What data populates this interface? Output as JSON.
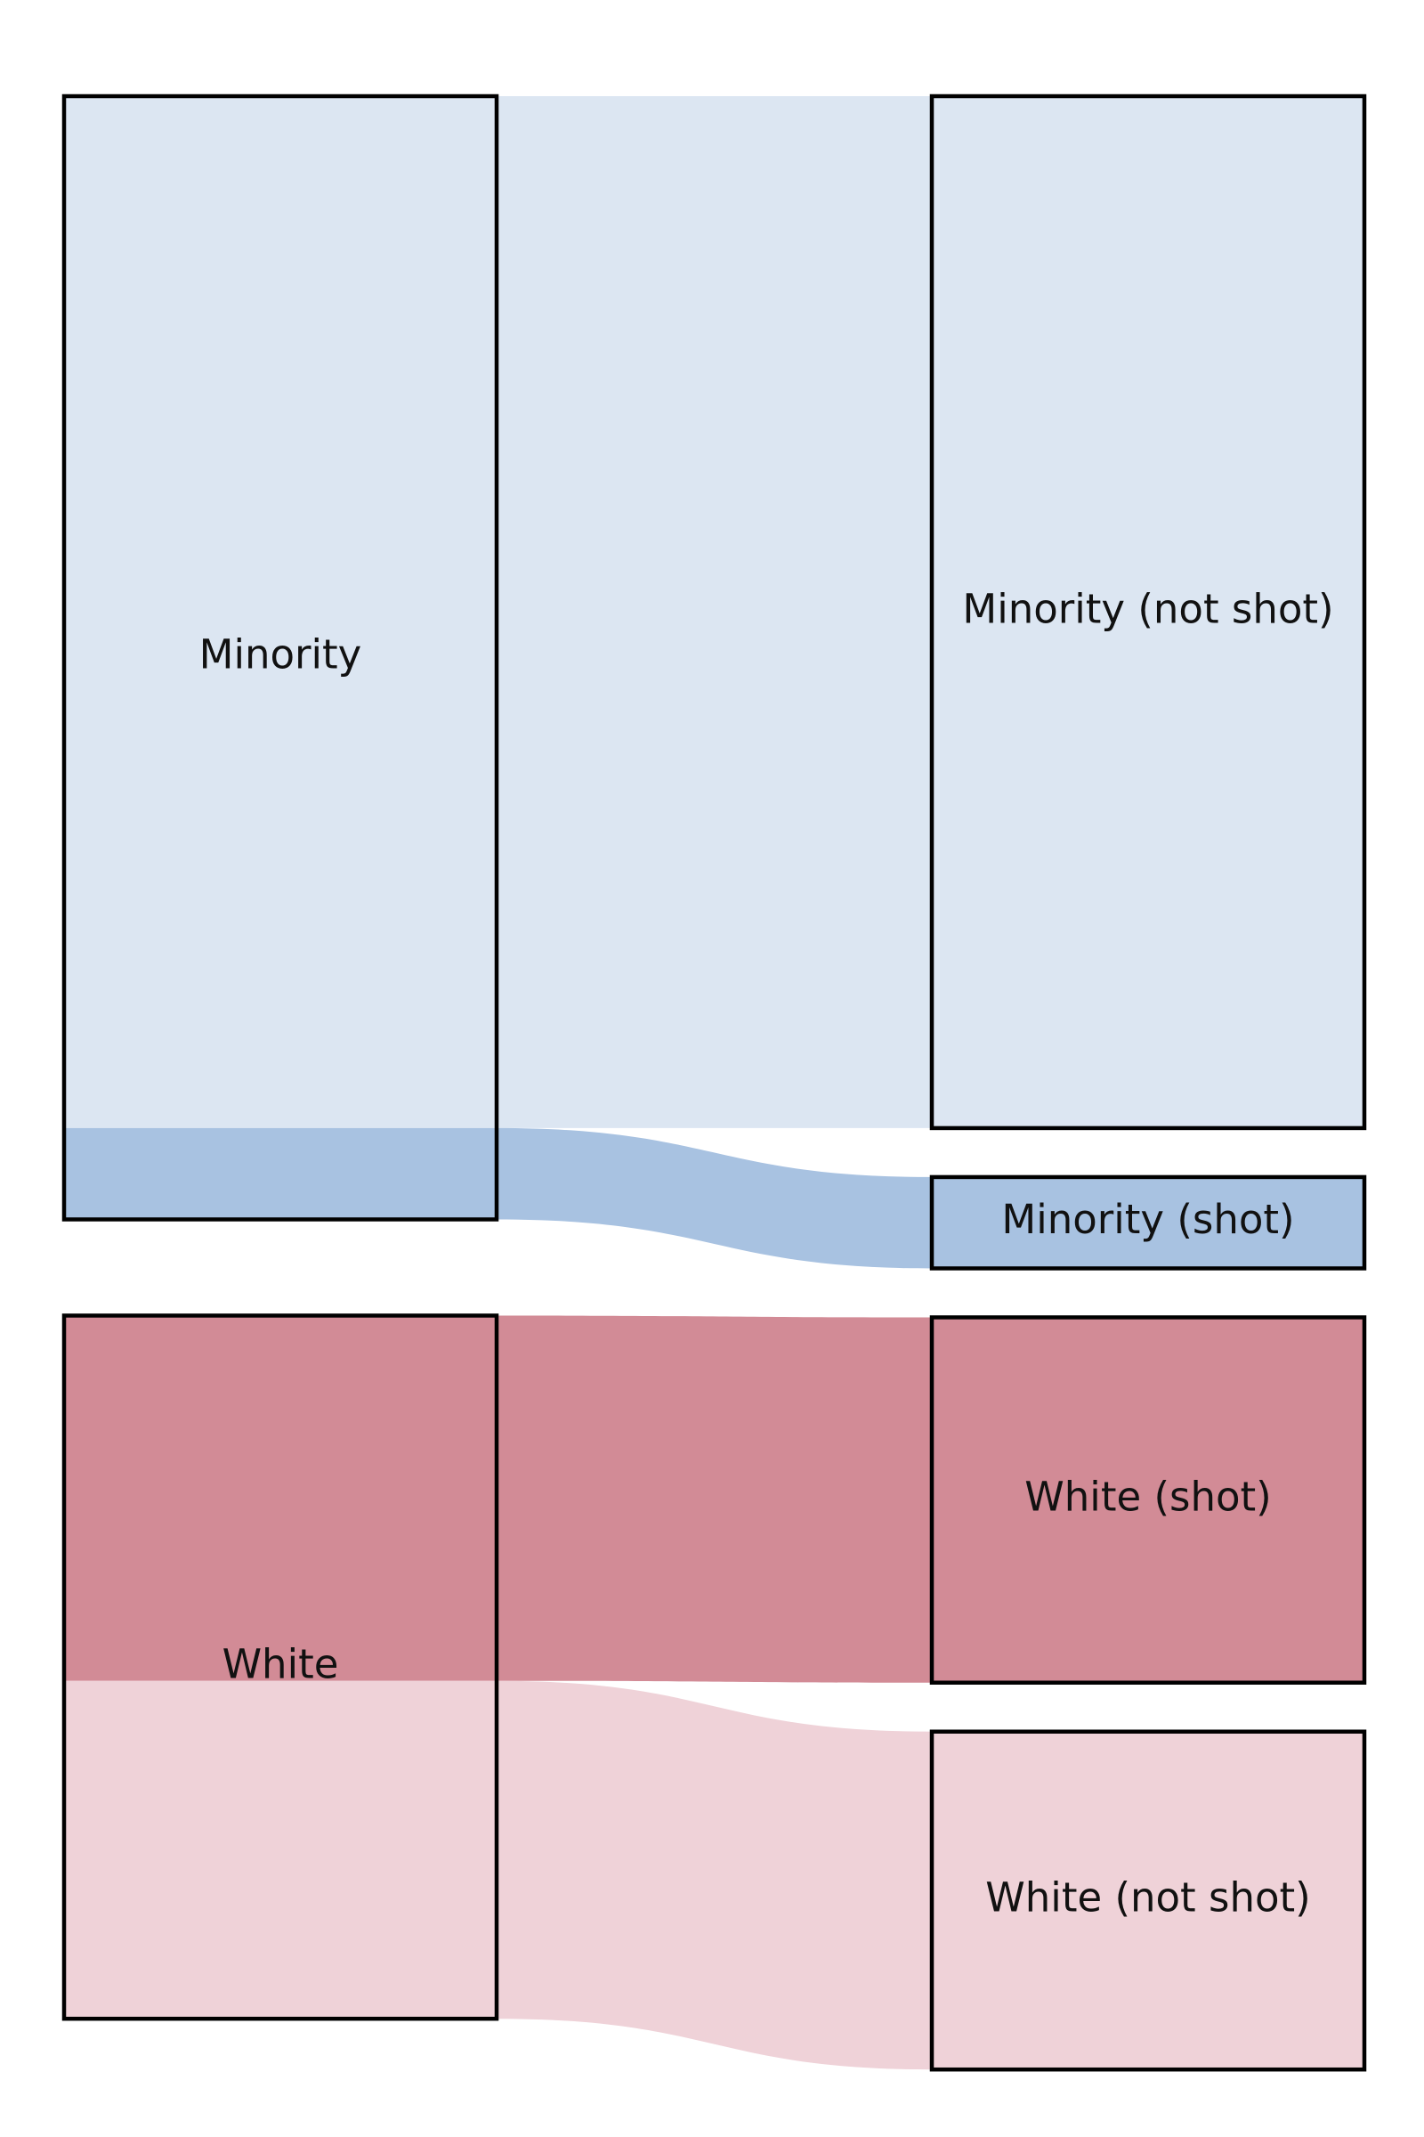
{
  "chart_data": {
    "type": "sankey",
    "nodes": [
      {
        "id": "minority",
        "label": "Minority",
        "column": 0,
        "color": "#dce6f2"
      },
      {
        "id": "white",
        "label": "White",
        "column": 0,
        "color": "#efd2d8"
      },
      {
        "id": "minority_not_shot",
        "label": "Minority (not shot)",
        "column": 1,
        "color": "#dce6f2"
      },
      {
        "id": "minority_shot",
        "label": "Minority (shot)",
        "column": 1,
        "color": "#a8c2e1"
      },
      {
        "id": "white_shot",
        "label": "White (shot)",
        "column": 1,
        "color": "#d28b96"
      },
      {
        "id": "white_not_shot",
        "label": "White (not shot)",
        "column": 1,
        "color": "#efd2d8"
      }
    ],
    "links": [
      {
        "source": "minority",
        "target": "minority_not_shot",
        "value": 1130,
        "color": "#dce6f2"
      },
      {
        "source": "minority",
        "target": "minority_shot",
        "value": 100,
        "color": "#a8c2e1"
      },
      {
        "source": "white",
        "target": "white_shot",
        "value": 400,
        "color": "#d28b96"
      },
      {
        "source": "white",
        "target": "white_not_shot",
        "value": 370,
        "color": "#efd2d8"
      }
    ]
  }
}
